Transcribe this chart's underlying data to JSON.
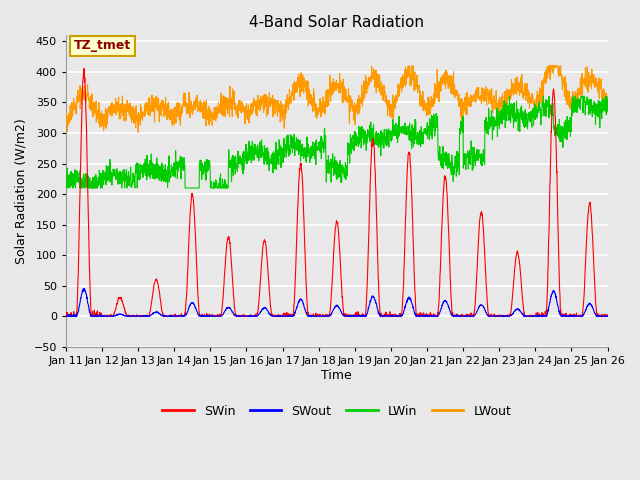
{
  "title": "4-Band Solar Radiation",
  "xlabel": "Time",
  "ylabel": "Solar Radiation (W/m2)",
  "ylim": [
    -50,
    460
  ],
  "background_color": "#e8e8e8",
  "plot_bg_color": "#e8e8e8",
  "grid_color": "#ffffff",
  "annotation_text": "TZ_tmet",
  "annotation_bg": "#ffffcc",
  "annotation_border": "#c8a000",
  "annotation_text_color": "#8b0000",
  "legend_items": [
    "SWin",
    "SWout",
    "LWin",
    "LWout"
  ],
  "legend_colors": [
    "#ff0000",
    "#0000ff",
    "#00cc00",
    "#ff9900"
  ],
  "x_tick_labels": [
    "Jan 11",
    "Jan 12",
    "Jan 13",
    "Jan 14",
    "Jan 15",
    "Jan 16",
    "Jan 17",
    "Jan 18",
    "Jan 19",
    "Jan 20",
    "Jan 21",
    "Jan 22",
    "Jan 23",
    "Jan 24",
    "Jan 25",
    "Jan 26"
  ],
  "n_days": 15,
  "pts_per_day": 144,
  "seed": 42
}
